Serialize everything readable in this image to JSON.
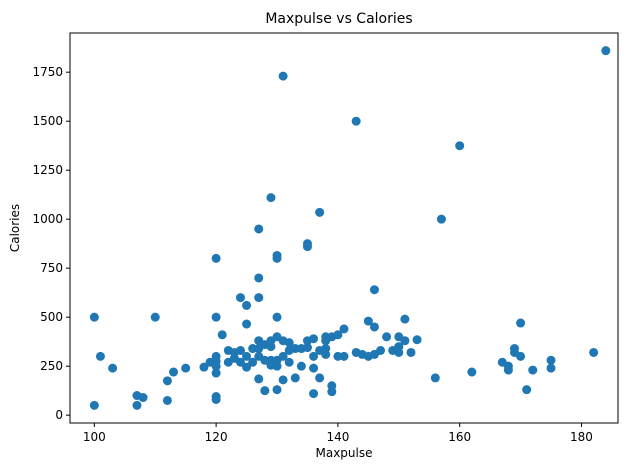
{
  "chart_data": {
    "type": "scatter",
    "title": "Maxpulse vs Calories",
    "xlabel": "Maxpulse",
    "ylabel": "Calories",
    "xlim": [
      96,
      186
    ],
    "ylim": [
      -40,
      1950
    ],
    "xticks": [
      100,
      120,
      140,
      160,
      180
    ],
    "yticks": [
      0,
      250,
      500,
      750,
      1000,
      1250,
      1500,
      1750
    ],
    "grid": false,
    "marker_color": "#1f77b4",
    "points": [
      {
        "x": 100,
        "y": 500
      },
      {
        "x": 100,
        "y": 50
      },
      {
        "x": 101,
        "y": 300
      },
      {
        "x": 103,
        "y": 240
      },
      {
        "x": 107,
        "y": 100
      },
      {
        "x": 107,
        "y": 50
      },
      {
        "x": 108,
        "y": 90
      },
      {
        "x": 110,
        "y": 500
      },
      {
        "x": 112,
        "y": 175
      },
      {
        "x": 112,
        "y": 75
      },
      {
        "x": 113,
        "y": 220
      },
      {
        "x": 115,
        "y": 240
      },
      {
        "x": 118,
        "y": 245
      },
      {
        "x": 119,
        "y": 270
      },
      {
        "x": 120,
        "y": 800
      },
      {
        "x": 120,
        "y": 500
      },
      {
        "x": 120,
        "y": 300
      },
      {
        "x": 120,
        "y": 275
      },
      {
        "x": 120,
        "y": 250
      },
      {
        "x": 120,
        "y": 215
      },
      {
        "x": 120,
        "y": 95
      },
      {
        "x": 120,
        "y": 80
      },
      {
        "x": 121,
        "y": 410
      },
      {
        "x": 122,
        "y": 330
      },
      {
        "x": 122,
        "y": 270
      },
      {
        "x": 123,
        "y": 320
      },
      {
        "x": 123,
        "y": 290
      },
      {
        "x": 124,
        "y": 600
      },
      {
        "x": 124,
        "y": 330
      },
      {
        "x": 124,
        "y": 270
      },
      {
        "x": 125,
        "y": 560
      },
      {
        "x": 125,
        "y": 465
      },
      {
        "x": 125,
        "y": 300
      },
      {
        "x": 125,
        "y": 245
      },
      {
        "x": 126,
        "y": 340
      },
      {
        "x": 126,
        "y": 270
      },
      {
        "x": 127,
        "y": 950
      },
      {
        "x": 127,
        "y": 700
      },
      {
        "x": 127,
        "y": 600
      },
      {
        "x": 127,
        "y": 380
      },
      {
        "x": 127,
        "y": 340
      },
      {
        "x": 127,
        "y": 300
      },
      {
        "x": 127,
        "y": 185
      },
      {
        "x": 128,
        "y": 360
      },
      {
        "x": 128,
        "y": 280
      },
      {
        "x": 128,
        "y": 125
      },
      {
        "x": 129,
        "y": 1110
      },
      {
        "x": 129,
        "y": 380
      },
      {
        "x": 129,
        "y": 350
      },
      {
        "x": 129,
        "y": 280
      },
      {
        "x": 129,
        "y": 255
      },
      {
        "x": 130,
        "y": 815
      },
      {
        "x": 130,
        "y": 800
      },
      {
        "x": 130,
        "y": 500
      },
      {
        "x": 130,
        "y": 400
      },
      {
        "x": 130,
        "y": 280
      },
      {
        "x": 130,
        "y": 250
      },
      {
        "x": 130,
        "y": 130
      },
      {
        "x": 131,
        "y": 1730
      },
      {
        "x": 131,
        "y": 380
      },
      {
        "x": 131,
        "y": 300
      },
      {
        "x": 131,
        "y": 180
      },
      {
        "x": 132,
        "y": 370
      },
      {
        "x": 132,
        "y": 330
      },
      {
        "x": 132,
        "y": 270
      },
      {
        "x": 133,
        "y": 340
      },
      {
        "x": 133,
        "y": 190
      },
      {
        "x": 134,
        "y": 340
      },
      {
        "x": 134,
        "y": 250
      },
      {
        "x": 135,
        "y": 875
      },
      {
        "x": 135,
        "y": 860
      },
      {
        "x": 135,
        "y": 380
      },
      {
        "x": 135,
        "y": 345
      },
      {
        "x": 136,
        "y": 390
      },
      {
        "x": 136,
        "y": 300
      },
      {
        "x": 136,
        "y": 240
      },
      {
        "x": 136,
        "y": 110
      },
      {
        "x": 137,
        "y": 1035
      },
      {
        "x": 137,
        "y": 330
      },
      {
        "x": 137,
        "y": 190
      },
      {
        "x": 138,
        "y": 400
      },
      {
        "x": 138,
        "y": 380
      },
      {
        "x": 138,
        "y": 340
      },
      {
        "x": 138,
        "y": 310
      },
      {
        "x": 139,
        "y": 400
      },
      {
        "x": 139,
        "y": 150
      },
      {
        "x": 139,
        "y": 120
      },
      {
        "x": 140,
        "y": 410
      },
      {
        "x": 140,
        "y": 300
      },
      {
        "x": 141,
        "y": 440
      },
      {
        "x": 141,
        "y": 300
      },
      {
        "x": 143,
        "y": 1500
      },
      {
        "x": 143,
        "y": 320
      },
      {
        "x": 144,
        "y": 310
      },
      {
        "x": 145,
        "y": 480
      },
      {
        "x": 145,
        "y": 300
      },
      {
        "x": 146,
        "y": 640
      },
      {
        "x": 146,
        "y": 450
      },
      {
        "x": 146,
        "y": 310
      },
      {
        "x": 147,
        "y": 330
      },
      {
        "x": 148,
        "y": 400
      },
      {
        "x": 149,
        "y": 330
      },
      {
        "x": 150,
        "y": 400
      },
      {
        "x": 150,
        "y": 350
      },
      {
        "x": 150,
        "y": 320
      },
      {
        "x": 151,
        "y": 490
      },
      {
        "x": 151,
        "y": 380
      },
      {
        "x": 152,
        "y": 320
      },
      {
        "x": 153,
        "y": 385
      },
      {
        "x": 156,
        "y": 190
      },
      {
        "x": 157,
        "y": 1000
      },
      {
        "x": 160,
        "y": 1375
      },
      {
        "x": 162,
        "y": 220
      },
      {
        "x": 167,
        "y": 270
      },
      {
        "x": 168,
        "y": 250
      },
      {
        "x": 168,
        "y": 230
      },
      {
        "x": 169,
        "y": 340
      },
      {
        "x": 169,
        "y": 320
      },
      {
        "x": 170,
        "y": 470
      },
      {
        "x": 170,
        "y": 300
      },
      {
        "x": 171,
        "y": 130
      },
      {
        "x": 172,
        "y": 230
      },
      {
        "x": 175,
        "y": 280
      },
      {
        "x": 175,
        "y": 240
      },
      {
        "x": 182,
        "y": 320
      },
      {
        "x": 184,
        "y": 1860
      }
    ]
  }
}
